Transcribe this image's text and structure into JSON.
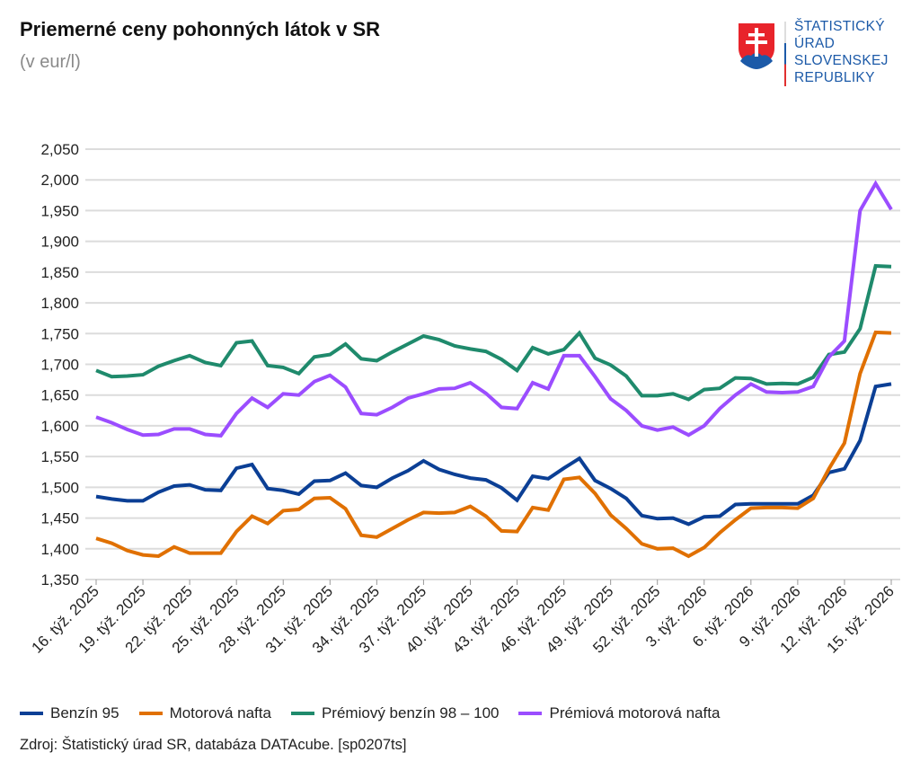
{
  "header": {
    "title": "Priemerné ceny pohonných látok v SR",
    "subtitle": "(v eur/l)"
  },
  "logo": {
    "lines": [
      "ŠTATISTICKÝ",
      "ÚRAD",
      "SLOVENSKEJ",
      "REPUBLIKY"
    ],
    "colors": {
      "blue": "#1c5aa8",
      "red": "#e03030"
    }
  },
  "source": "Zdroj: Štatistický úrad SR, databáza DATAcube. [sp0207ts]",
  "chart_data": {
    "type": "line",
    "title": "Priemerné ceny pohonných látok v SR",
    "ylabel": "(v eur/l)",
    "ylim": [
      1.35,
      2.05
    ],
    "yticks": [
      1.35,
      1.4,
      1.45,
      1.5,
      1.55,
      1.6,
      1.65,
      1.7,
      1.75,
      1.8,
      1.85,
      1.9,
      1.95,
      2.0,
      2.05
    ],
    "ytick_labels": [
      "1,350",
      "1,400",
      "1,450",
      "1,500",
      "1,550",
      "1,600",
      "1,650",
      "1,700",
      "1,750",
      "1,800",
      "1,850",
      "1,900",
      "1,950",
      "2,000",
      "2,050"
    ],
    "grid": true,
    "legend": "bottom",
    "x": [
      "16. týž. 2025",
      "17. týž. 2025",
      "18. týž. 2025",
      "19. týž. 2025",
      "20. týž. 2025",
      "21. týž. 2025",
      "22. týž. 2025",
      "23. týž. 2025",
      "24. týž. 2025",
      "25. týž. 2025",
      "26. týž. 2025",
      "27. týž. 2025",
      "28. týž. 2025",
      "29. týž. 2025",
      "30. týž. 2025",
      "31. týž. 2025",
      "32. týž. 2025",
      "33. týž. 2025",
      "34. týž. 2025",
      "35. týž. 2025",
      "36. týž. 2025",
      "37. týž. 2025",
      "38. týž. 2025",
      "39. týž. 2025",
      "40. týž. 2025",
      "41. týž. 2025",
      "42. týž. 2025",
      "43. týž. 2025",
      "44. týž. 2025",
      "45. týž. 2025",
      "46. týž. 2025",
      "47. týž. 2025",
      "48. týž. 2025",
      "49. týž. 2025",
      "50. týž. 2025",
      "51. týž. 2025",
      "52. týž. 2025",
      "1. týž. 2026",
      "2. týž. 2026",
      "3. týž. 2026",
      "4. týž. 2026",
      "5. týž. 2026",
      "6. týž. 2026",
      "7. týž. 2026",
      "8. týž. 2026",
      "9. týž. 2026",
      "10. týž. 2026",
      "11. týž. 2026",
      "12. týž. 2026",
      "13. týž. 2026",
      "14. týž. 2026",
      "15. týž. 2026"
    ],
    "xtick_labels": [
      "16. týž. 2025",
      "19. týž. 2025",
      "22. týž. 2025",
      "25. týž. 2025",
      "28. týž. 2025",
      "31. týž. 2025",
      "34. týž. 2025",
      "37. týž. 2025",
      "40. týž. 2025",
      "43. týž. 2025",
      "46. týž. 2025",
      "49. týž. 2025",
      "52. týž. 2025",
      "3. týž. 2026",
      "6. týž. 2026",
      "9. týž. 2026",
      "12. týž. 2026",
      "15. týž. 2026"
    ],
    "series": [
      {
        "name": "Benzín 95",
        "color": "#0b3f95",
        "values": [
          1.485,
          1.481,
          1.478,
          1.478,
          1.492,
          1.502,
          1.504,
          1.496,
          1.495,
          1.531,
          1.537,
          1.498,
          1.495,
          1.489,
          1.51,
          1.511,
          1.523,
          1.503,
          1.5,
          1.515,
          1.527,
          1.543,
          1.529,
          1.521,
          1.515,
          1.512,
          1.499,
          1.479,
          1.518,
          1.514,
          1.531,
          1.547,
          1.511,
          1.498,
          1.482,
          1.454,
          1.449,
          1.45,
          1.44,
          1.452,
          1.453,
          1.472,
          1.473,
          1.473,
          1.473,
          1.473,
          1.487,
          1.524,
          1.53,
          1.576,
          1.664,
          1.668
        ]
      },
      {
        "name": "Motorová nafta",
        "color": "#e07000",
        "values": [
          1.417,
          1.409,
          1.397,
          1.39,
          1.388,
          1.403,
          1.393,
          1.393,
          1.393,
          1.428,
          1.453,
          1.441,
          1.462,
          1.464,
          1.482,
          1.483,
          1.465,
          1.422,
          1.419,
          1.433,
          1.447,
          1.459,
          1.458,
          1.459,
          1.469,
          1.453,
          1.429,
          1.428,
          1.467,
          1.463,
          1.513,
          1.516,
          1.49,
          1.455,
          1.433,
          1.408,
          1.4,
          1.401,
          1.388,
          1.402,
          1.426,
          1.447,
          1.466,
          1.467,
          1.467,
          1.466,
          1.482,
          1.53,
          1.572,
          1.685,
          1.752,
          1.751
        ]
      },
      {
        "name": "Prémiový benzín 98 – 100",
        "color": "#1f8a6c",
        "values": [
          1.69,
          1.68,
          1.681,
          1.683,
          1.697,
          1.706,
          1.714,
          1.703,
          1.698,
          1.735,
          1.738,
          1.698,
          1.695,
          1.685,
          1.712,
          1.716,
          1.733,
          1.709,
          1.706,
          1.72,
          1.733,
          1.746,
          1.74,
          1.73,
          1.725,
          1.721,
          1.708,
          1.69,
          1.727,
          1.717,
          1.724,
          1.751,
          1.71,
          1.699,
          1.681,
          1.649,
          1.649,
          1.652,
          1.643,
          1.659,
          1.661,
          1.678,
          1.677,
          1.668,
          1.669,
          1.668,
          1.679,
          1.716,
          1.72,
          1.758,
          1.86,
          1.859
        ]
      },
      {
        "name": "Prémiová motorová nafta",
        "color": "#9b4dff",
        "values": [
          1.614,
          1.605,
          1.594,
          1.585,
          1.586,
          1.595,
          1.595,
          1.586,
          1.584,
          1.62,
          1.645,
          1.63,
          1.652,
          1.65,
          1.672,
          1.682,
          1.663,
          1.62,
          1.618,
          1.63,
          1.645,
          1.652,
          1.66,
          1.661,
          1.67,
          1.653,
          1.63,
          1.628,
          1.67,
          1.66,
          1.714,
          1.714,
          1.68,
          1.644,
          1.625,
          1.6,
          1.593,
          1.598,
          1.585,
          1.6,
          1.628,
          1.65,
          1.668,
          1.655,
          1.654,
          1.655,
          1.664,
          1.712,
          1.738,
          1.95,
          1.994,
          1.952
        ]
      }
    ]
  }
}
